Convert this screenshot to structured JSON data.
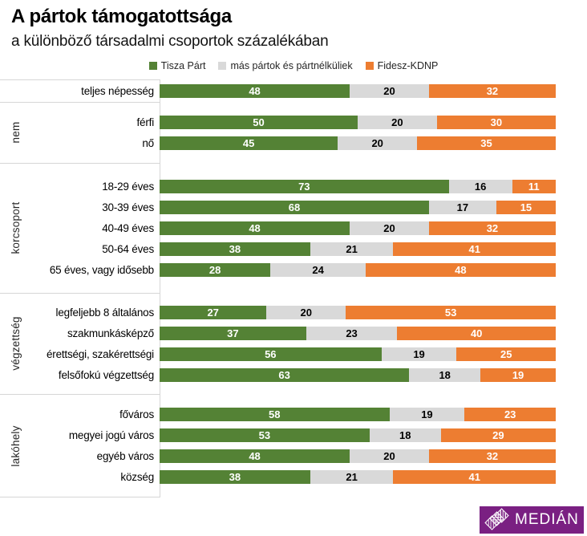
{
  "header": {
    "title": "A pártok támogatottsága",
    "subtitle": "a különböző társadalmi csoportok százalékában"
  },
  "chart_data": {
    "type": "bar",
    "subtype": "horizontal-stacked",
    "unit": "percent",
    "xlim": [
      0,
      100
    ],
    "legend_position": "top-center",
    "grid": false,
    "series": [
      {
        "name": "Tisza Párt",
        "color": "#548235"
      },
      {
        "name": "más pártok és pártnélküliek",
        "color": "#D9D9D9"
      },
      {
        "name": "Fidesz-KDNP",
        "color": "#ED7D31"
      }
    ],
    "groups": [
      {
        "label": "",
        "rows": [
          {
            "label": "teljes népesség",
            "values": [
              48,
              20,
              32
            ]
          }
        ]
      },
      {
        "label": "nem",
        "rows": [
          {
            "label": "férfi",
            "values": [
              50,
              20,
              30
            ]
          },
          {
            "label": "nő",
            "values": [
              45,
              20,
              35
            ]
          }
        ]
      },
      {
        "label": "korcsoport",
        "rows": [
          {
            "label": "18-29 éves",
            "values": [
              73,
              16,
              11
            ]
          },
          {
            "label": "30-39 éves",
            "values": [
              68,
              17,
              15
            ]
          },
          {
            "label": "40-49 éves",
            "values": [
              48,
              20,
              32
            ]
          },
          {
            "label": "50-64 éves",
            "values": [
              38,
              21,
              41
            ]
          },
          {
            "label": "65 éves, vagy idősebb",
            "values": [
              28,
              24,
              48
            ]
          }
        ]
      },
      {
        "label": "végzettség",
        "rows": [
          {
            "label": "legfeljebb 8 általános",
            "values": [
              27,
              20,
              53
            ]
          },
          {
            "label": "szakmunkásképző",
            "values": [
              37,
              23,
              40
            ]
          },
          {
            "label": "érettségi, szakérettségi",
            "values": [
              56,
              19,
              25
            ]
          },
          {
            "label": "felsőfokú végzettség",
            "values": [
              63,
              18,
              19
            ]
          }
        ]
      },
      {
        "label": "lakóhely",
        "rows": [
          {
            "label": "főváros",
            "values": [
              58,
              19,
              23
            ]
          },
          {
            "label": "megyei jogú város",
            "values": [
              53,
              18,
              29
            ]
          },
          {
            "label": "egyéb város",
            "values": [
              48,
              20,
              32
            ]
          },
          {
            "label": "község",
            "values": [
              38,
              21,
              41
            ]
          }
        ]
      }
    ],
    "colors": {
      "axis_line": "#D6D6D6",
      "value_label_on_color": "#FFFFFF",
      "value_label_on_gray": "#000000"
    }
  },
  "footer": {
    "logo_text": "MEDIÁN",
    "logo_bg": "#7A2082"
  }
}
